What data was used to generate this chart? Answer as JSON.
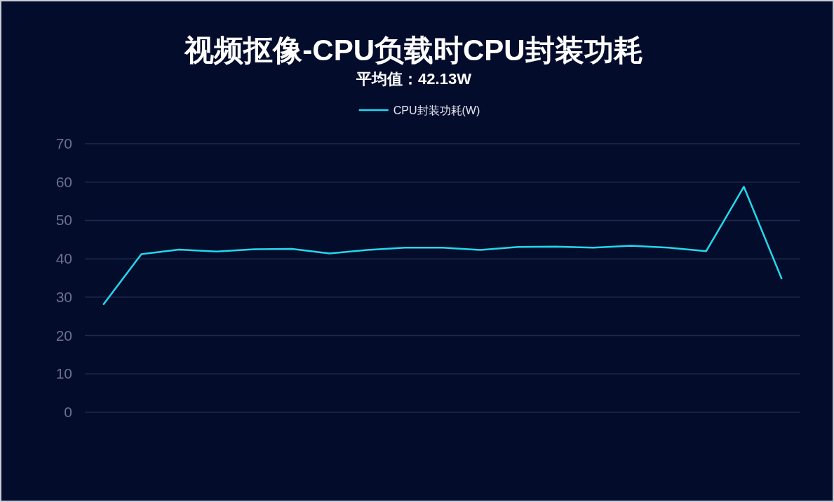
{
  "chart_data": {
    "type": "line",
    "title": "视频抠像-CPU负载时CPU封装功耗",
    "subtitle": "平均值：42.13W",
    "categories": [
      null,
      null,
      null,
      null,
      null,
      null,
      null,
      null,
      null,
      null,
      null,
      null,
      null,
      null,
      null,
      null,
      null,
      null,
      null
    ],
    "series": [
      {
        "name": "CPU封装功耗(W)",
        "color": "#22d9eb",
        "values": [
          28.2,
          41.2,
          42.4,
          41.9,
          42.5,
          42.6,
          41.4,
          42.3,
          42.9,
          42.9,
          42.3,
          43.1,
          43.2,
          42.9,
          43.4,
          42.9,
          42.0,
          58.8,
          34.9
        ]
      }
    ],
    "ylim": [
      0,
      70
    ],
    "yticks": [
      0,
      10,
      20,
      30,
      40,
      50,
      60,
      70
    ],
    "grid": "y",
    "legend": "top",
    "tick_labels": "y"
  }
}
